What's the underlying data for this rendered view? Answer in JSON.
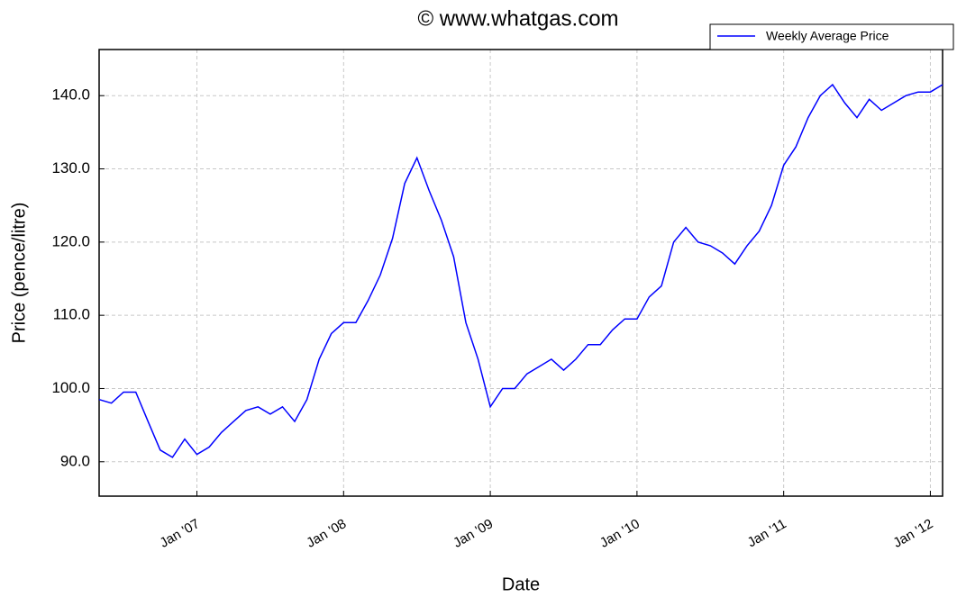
{
  "chart_data": {
    "type": "line",
    "title": "© www.whatgas.com",
    "xlabel": "Date",
    "ylabel": "Price (pence/litre)",
    "x": [
      "2006-05",
      "2006-06",
      "2006-07",
      "2006-08",
      "2006-09",
      "2006-10",
      "2006-11",
      "2006-12",
      "2007-01",
      "2007-02",
      "2007-03",
      "2007-04",
      "2007-05",
      "2007-06",
      "2007-07",
      "2007-08",
      "2007-09",
      "2007-10",
      "2007-11",
      "2007-12",
      "2008-01",
      "2008-02",
      "2008-03",
      "2008-04",
      "2008-05",
      "2008-06",
      "2008-07",
      "2008-08",
      "2008-09",
      "2008-10",
      "2008-11",
      "2008-12",
      "2009-01",
      "2009-02",
      "2009-03",
      "2009-04",
      "2009-05",
      "2009-06",
      "2009-07",
      "2009-08",
      "2009-09",
      "2009-10",
      "2009-11",
      "2009-12",
      "2010-01",
      "2010-02",
      "2010-03",
      "2010-04",
      "2010-05",
      "2010-06",
      "2010-07",
      "2010-08",
      "2010-09",
      "2010-10",
      "2010-11",
      "2010-12",
      "2011-01",
      "2011-02",
      "2011-03",
      "2011-04",
      "2011-05",
      "2011-06",
      "2011-07",
      "2011-08",
      "2011-09",
      "2011-10",
      "2011-11",
      "2011-12",
      "2012-01",
      "2012-02"
    ],
    "series": [
      {
        "name": "Weekly Average Price",
        "color": "#0000ff",
        "values": [
          98.5,
          98,
          99.5,
          99.5,
          95.5,
          91.6,
          90.6,
          93.1,
          91,
          92,
          94,
          95.5,
          97,
          97.5,
          96.5,
          97.5,
          95.5,
          98.5,
          104,
          107.5,
          109,
          109,
          112,
          115.5,
          120.5,
          128,
          131.5,
          127,
          123,
          118,
          109,
          104,
          97.5,
          100,
          100,
          102,
          103,
          104,
          102.5,
          104,
          106,
          106,
          108,
          109.5,
          109.5,
          112.5,
          114,
          120,
          122,
          120,
          119.5,
          118.5,
          117,
          119.5,
          121.5,
          125,
          130.5,
          133,
          137,
          140,
          141.5,
          139,
          137,
          139.5,
          138,
          139,
          140,
          140.5,
          140.5,
          141.5
        ]
      }
    ],
    "xlim": [
      "2006-05",
      "2012-02"
    ],
    "xticks": [
      {
        "value": "2007-01",
        "label": "Jan '07"
      },
      {
        "value": "2008-01",
        "label": "Jan '08"
      },
      {
        "value": "2009-01",
        "label": "Jan '09"
      },
      {
        "value": "2010-01",
        "label": "Jan '10"
      },
      {
        "value": "2011-01",
        "label": "Jan '11"
      },
      {
        "value": "2012-01",
        "label": "Jan '12"
      }
    ],
    "ylim": [
      85.3,
      146.3
    ],
    "yticks": [
      {
        "value": 90,
        "label": "90.0"
      },
      {
        "value": 100,
        "label": "100.0"
      },
      {
        "value": 110,
        "label": "110.0"
      },
      {
        "value": 120,
        "label": "120.0"
      },
      {
        "value": 130,
        "label": "130.0"
      },
      {
        "value": 140,
        "label": "140.0"
      }
    ],
    "grid": true,
    "legend": "upper right"
  }
}
